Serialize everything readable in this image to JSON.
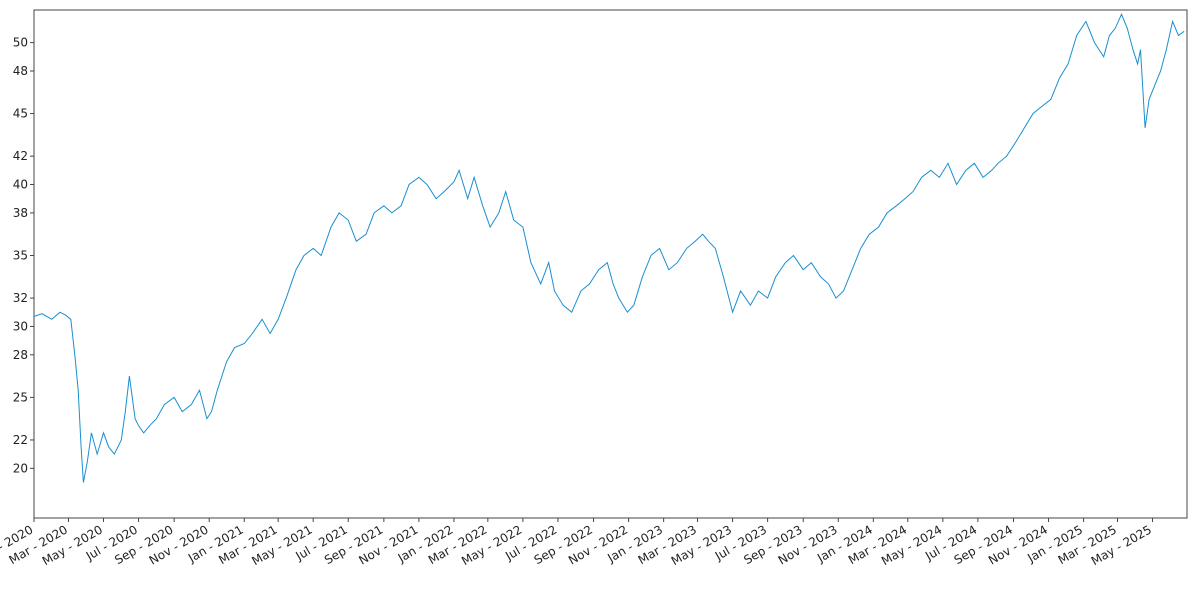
{
  "chart_data": {
    "type": "line",
    "title": "",
    "xlabel": "",
    "ylabel": "",
    "grid": false,
    "legend": "none",
    "line_color": "#1a8fd0",
    "xlim": [
      "2020-01-01",
      "2025-06-30"
    ],
    "ylim": [
      16.5,
      52.3
    ],
    "y_ticks": [
      20,
      22,
      25,
      28,
      30,
      32,
      35,
      38,
      40,
      42,
      45,
      48,
      50
    ],
    "x_ticks": [
      {
        "date": "2020-01-01",
        "label": "Jan - 2020"
      },
      {
        "date": "2020-03-01",
        "label": "Mar - 2020"
      },
      {
        "date": "2020-05-01",
        "label": "May - 2020"
      },
      {
        "date": "2020-07-01",
        "label": "Jul - 2020"
      },
      {
        "date": "2020-09-01",
        "label": "Sep - 2020"
      },
      {
        "date": "2020-11-01",
        "label": "Nov - 2020"
      },
      {
        "date": "2021-01-01",
        "label": "Jan - 2021"
      },
      {
        "date": "2021-03-01",
        "label": "Mar - 2021"
      },
      {
        "date": "2021-05-01",
        "label": "May - 2021"
      },
      {
        "date": "2021-07-01",
        "label": "Jul - 2021"
      },
      {
        "date": "2021-09-01",
        "label": "Sep - 2021"
      },
      {
        "date": "2021-11-01",
        "label": "Nov - 2021"
      },
      {
        "date": "2022-01-01",
        "label": "Jan - 2022"
      },
      {
        "date": "2022-03-01",
        "label": "Mar - 2022"
      },
      {
        "date": "2022-05-01",
        "label": "May - 2022"
      },
      {
        "date": "2022-07-01",
        "label": "Jul - 2022"
      },
      {
        "date": "2022-09-01",
        "label": "Sep - 2022"
      },
      {
        "date": "2022-11-01",
        "label": "Nov - 2022"
      },
      {
        "date": "2023-01-01",
        "label": "Jan - 2023"
      },
      {
        "date": "2023-03-01",
        "label": "Mar - 2023"
      },
      {
        "date": "2023-05-01",
        "label": "May - 2023"
      },
      {
        "date": "2023-07-01",
        "label": "Jul - 2023"
      },
      {
        "date": "2023-09-01",
        "label": "Sep - 2023"
      },
      {
        "date": "2023-11-01",
        "label": "Nov - 2023"
      },
      {
        "date": "2024-01-01",
        "label": "Jan - 2024"
      },
      {
        "date": "2024-03-01",
        "label": "Mar - 2024"
      },
      {
        "date": "2024-05-01",
        "label": "May - 2024"
      },
      {
        "date": "2024-07-01",
        "label": "Jul - 2024"
      },
      {
        "date": "2024-09-01",
        "label": "Sep - 2024"
      },
      {
        "date": "2024-11-01",
        "label": "Nov - 2024"
      },
      {
        "date": "2025-01-01",
        "label": "Jan - 2025"
      },
      {
        "date": "2025-03-01",
        "label": "Mar - 2025"
      },
      {
        "date": "2025-05-01",
        "label": "May - 2025"
      }
    ],
    "series": [
      {
        "x": [
          "2020-01-01",
          "2020-01-15",
          "2020-02-01",
          "2020-02-15",
          "2020-02-25",
          "2020-03-05",
          "2020-03-12",
          "2020-03-18",
          "2020-03-23",
          "2020-03-27",
          "2020-04-03",
          "2020-04-10",
          "2020-04-20",
          "2020-05-01",
          "2020-05-10",
          "2020-05-20",
          "2020-06-01",
          "2020-06-08",
          "2020-06-15",
          "2020-06-25",
          "2020-07-01",
          "2020-07-10",
          "2020-07-20",
          "2020-08-01",
          "2020-08-15",
          "2020-09-01",
          "2020-09-15",
          "2020-10-01",
          "2020-10-15",
          "2020-10-28",
          "2020-11-05",
          "2020-11-15",
          "2020-12-01",
          "2020-12-15",
          "2021-01-01",
          "2021-01-15",
          "2021-02-01",
          "2021-02-15",
          "2021-03-01",
          "2021-03-15",
          "2021-04-01",
          "2021-04-15",
          "2021-05-01",
          "2021-05-15",
          "2021-06-01",
          "2021-06-15",
          "2021-07-01",
          "2021-07-15",
          "2021-08-01",
          "2021-08-15",
          "2021-09-01",
          "2021-09-15",
          "2021-10-01",
          "2021-10-15",
          "2021-11-01",
          "2021-11-15",
          "2021-12-01",
          "2021-12-15",
          "2022-01-01",
          "2022-01-10",
          "2022-01-25",
          "2022-02-05",
          "2022-02-20",
          "2022-03-05",
          "2022-03-20",
          "2022-04-01",
          "2022-04-15",
          "2022-05-01",
          "2022-05-15",
          "2022-06-01",
          "2022-06-15",
          "2022-06-25",
          "2022-07-10",
          "2022-07-25",
          "2022-08-10",
          "2022-08-25",
          "2022-09-10",
          "2022-09-25",
          "2022-10-05",
          "2022-10-15",
          "2022-10-30",
          "2022-11-10",
          "2022-11-25",
          "2022-12-10",
          "2022-12-25",
          "2023-01-10",
          "2023-01-25",
          "2023-02-10",
          "2023-02-25",
          "2023-03-10",
          "2023-03-20",
          "2023-04-01",
          "2023-04-15",
          "2023-05-01",
          "2023-05-15",
          "2023-06-01",
          "2023-06-15",
          "2023-07-01",
          "2023-07-15",
          "2023-08-01",
          "2023-08-15",
          "2023-09-01",
          "2023-09-15",
          "2023-10-01",
          "2023-10-15",
          "2023-10-28",
          "2023-11-10",
          "2023-11-25",
          "2023-12-10",
          "2023-12-25",
          "2024-01-10",
          "2024-01-25",
          "2024-02-10",
          "2024-02-25",
          "2024-03-10",
          "2024-03-25",
          "2024-04-10",
          "2024-04-25",
          "2024-05-10",
          "2024-05-25",
          "2024-06-10",
          "2024-06-25",
          "2024-07-10",
          "2024-07-25",
          "2024-08-05",
          "2024-08-20",
          "2024-09-05",
          "2024-09-20",
          "2024-10-05",
          "2024-10-20",
          "2024-11-05",
          "2024-11-20",
          "2024-12-05",
          "2024-12-20",
          "2025-01-05",
          "2025-01-20",
          "2025-02-05",
          "2025-02-15",
          "2025-02-25",
          "2025-03-08",
          "2025-03-18",
          "2025-03-28",
          "2025-04-05",
          "2025-04-10",
          "2025-04-18",
          "2025-04-25",
          "2025-05-05",
          "2025-05-15",
          "2025-05-25",
          "2025-06-05",
          "2025-06-15",
          "2025-06-25"
        ],
        "y": [
          30.7,
          30.9,
          30.5,
          31.0,
          30.8,
          30.5,
          28.0,
          25.5,
          21.5,
          19.0,
          20.5,
          22.5,
          21.0,
          22.5,
          21.5,
          21.0,
          22.0,
          24.0,
          26.5,
          23.5,
          23.0,
          22.5,
          23.0,
          23.5,
          24.5,
          25.0,
          24.0,
          24.5,
          25.5,
          23.5,
          24.0,
          25.5,
          27.5,
          28.5,
          28.8,
          29.5,
          30.5,
          29.5,
          30.5,
          32.0,
          34.0,
          35.0,
          35.5,
          35.0,
          37.0,
          38.0,
          37.5,
          36.0,
          36.5,
          38.0,
          38.5,
          38.0,
          38.5,
          40.0,
          40.5,
          40.0,
          39.0,
          39.5,
          40.2,
          41.0,
          39.0,
          40.5,
          38.5,
          37.0,
          38.0,
          39.5,
          37.5,
          37.0,
          34.5,
          33.0,
          34.5,
          32.5,
          31.5,
          31.0,
          32.5,
          33.0,
          34.0,
          34.5,
          33.0,
          32.0,
          31.0,
          31.5,
          33.5,
          35.0,
          35.5,
          34.0,
          34.5,
          35.5,
          36.0,
          36.5,
          36.0,
          35.5,
          33.5,
          31.0,
          32.5,
          31.5,
          32.5,
          32.0,
          33.5,
          34.5,
          35.0,
          34.0,
          34.5,
          33.5,
          33.0,
          32.0,
          32.5,
          34.0,
          35.5,
          36.5,
          37.0,
          38.0,
          38.5,
          39.0,
          39.5,
          40.5,
          41.0,
          40.5,
          41.5,
          40.0,
          41.0,
          41.5,
          40.5,
          41.0,
          41.5,
          42.0,
          43.0,
          44.0,
          45.0,
          45.5,
          46.0,
          47.5,
          48.5,
          50.5,
          51.5,
          50.0,
          49.0,
          50.5,
          51.0,
          52.0,
          51.0,
          49.5,
          48.5,
          49.5,
          44.0,
          46.0,
          47.0,
          48.0,
          49.5,
          51.5,
          50.5,
          50.8
        ]
      }
    ]
  }
}
